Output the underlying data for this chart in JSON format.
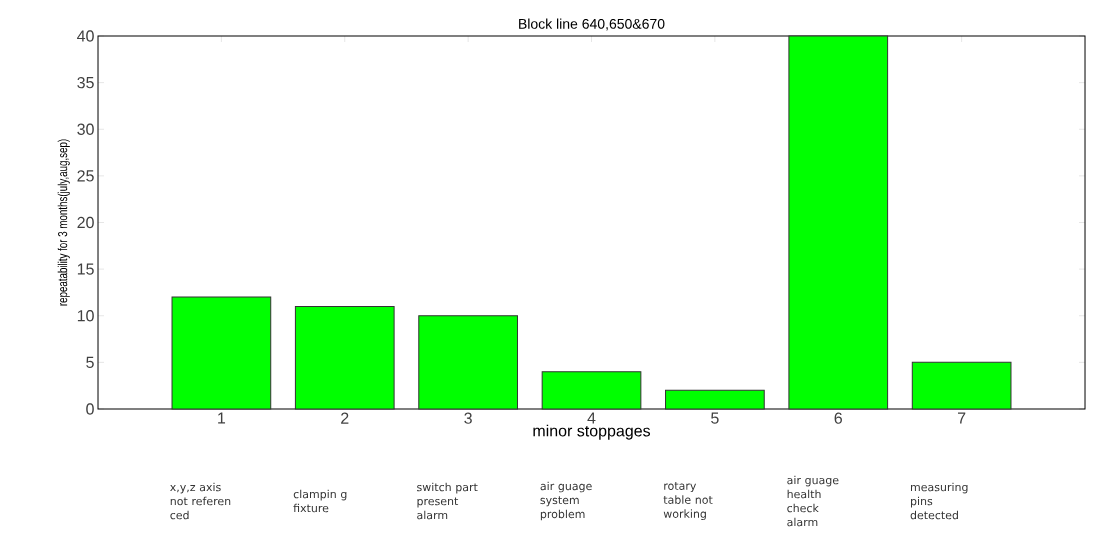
{
  "chart_data": {
    "type": "bar",
    "title": "Block line 640,650&670",
    "xlabel": "minor stoppages",
    "ylabel": "repeatability for 3 months(july,aug,sep)",
    "categories": [
      "1",
      "2",
      "3",
      "4",
      "5",
      "6",
      "7"
    ],
    "values": [
      12,
      11,
      10,
      4,
      2,
      40,
      5
    ],
    "color": "#00ff00",
    "ylim": [
      0,
      40
    ],
    "yticks": [
      0,
      5,
      10,
      15,
      20,
      25,
      30,
      35,
      40
    ],
    "grid": false,
    "annotations": [
      "x,y,z axis not referen ced",
      "clampin g fixture",
      "switch part present alarm",
      "air guage system problem",
      "rotary table not working",
      "air guage health check alarm",
      "measuring pins detected"
    ]
  }
}
